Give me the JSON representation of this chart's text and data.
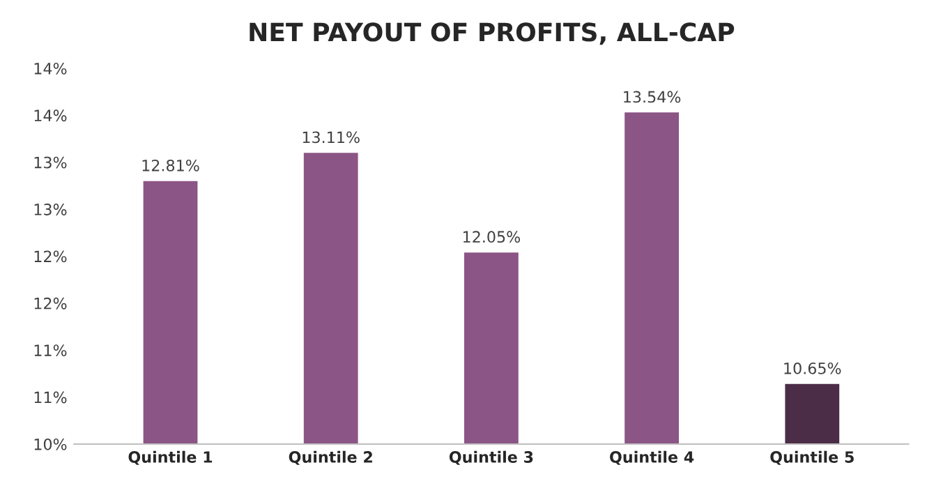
{
  "chart_data": {
    "type": "bar",
    "title": "NET PAYOUT OF PROFITS, ALL-CAP",
    "categories": [
      "Quintile 1",
      "Quintile 2",
      "Quintile 3",
      "Quintile 4",
      "Quintile 5"
    ],
    "values": [
      12.81,
      13.11,
      12.05,
      13.54,
      10.65
    ],
    "value_labels": [
      "12.81%",
      "13.11%",
      "12.05%",
      "13.54%",
      "10.65%"
    ],
    "colors": [
      "#8b5585",
      "#8b5585",
      "#8b5585",
      "#8b5585",
      "#4b2d47"
    ],
    "ylim": [
      10,
      14
    ],
    "yticks": [
      {
        "value": 10,
        "label": "10%"
      },
      {
        "value": 10.5,
        "label": "11%"
      },
      {
        "value": 11,
        "label": "11%"
      },
      {
        "value": 11.5,
        "label": "12%"
      },
      {
        "value": 12,
        "label": "12%"
      },
      {
        "value": 12.5,
        "label": "13%"
      },
      {
        "value": 13,
        "label": "13%"
      },
      {
        "value": 13.5,
        "label": "14%"
      },
      {
        "value": 14,
        "label": "14%"
      }
    ],
    "grid": false,
    "legend": false
  }
}
